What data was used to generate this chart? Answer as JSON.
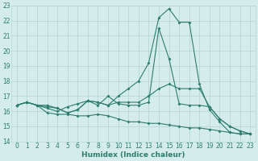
{
  "xlabel": "Humidex (Indice chaleur)",
  "x": [
    0,
    1,
    2,
    3,
    4,
    5,
    6,
    7,
    8,
    9,
    10,
    11,
    12,
    13,
    14,
    15,
    16,
    17,
    18,
    19,
    20,
    21,
    22,
    23
  ],
  "line_max": [
    16.4,
    16.6,
    16.4,
    16.4,
    16.2,
    15.9,
    16.1,
    16.7,
    16.6,
    16.4,
    17.0,
    17.5,
    18.0,
    19.2,
    22.2,
    22.8,
    21.9,
    21.9,
    17.8,
    16.1,
    15.3,
    14.6,
    14.5,
    14.5
  ],
  "line_mean": [
    16.4,
    16.6,
    16.4,
    16.3,
    16.2,
    15.9,
    16.1,
    16.7,
    16.6,
    16.4,
    16.6,
    16.6,
    16.6,
    17.0,
    17.5,
    17.8,
    17.5,
    17.5,
    17.5,
    16.3,
    15.5,
    15.0,
    14.7,
    14.5
  ],
  "line_min": [
    16.4,
    16.6,
    16.4,
    15.9,
    15.8,
    15.8,
    15.7,
    15.7,
    15.8,
    15.7,
    15.5,
    15.3,
    15.3,
    15.2,
    15.2,
    15.1,
    15.0,
    14.9,
    14.9,
    14.8,
    14.7,
    14.6,
    14.5,
    14.5
  ],
  "line_extra": [
    16.4,
    16.6,
    16.4,
    16.2,
    16.0,
    16.3,
    16.5,
    16.7,
    16.4,
    17.0,
    16.5,
    16.4,
    16.4,
    16.6,
    21.5,
    19.5,
    16.5,
    16.4,
    16.4,
    16.3,
    15.5,
    15.0,
    14.7,
    14.5
  ],
  "line_color": "#2e7d6e",
  "bg_color": "#d4edec",
  "grid_color": "#b8d8d5",
  "ylim": [
    14,
    23
  ],
  "yticks": [
    14,
    15,
    16,
    17,
    18,
    19,
    20,
    21,
    22,
    23
  ],
  "xticks": [
    0,
    1,
    2,
    3,
    4,
    5,
    6,
    7,
    8,
    9,
    10,
    11,
    12,
    13,
    14,
    15,
    16,
    17,
    18,
    19,
    20,
    21,
    22,
    23
  ],
  "marker_size": 2.0,
  "line_width": 0.8,
  "tick_fontsize": 5.5,
  "xlabel_fontsize": 6.5
}
